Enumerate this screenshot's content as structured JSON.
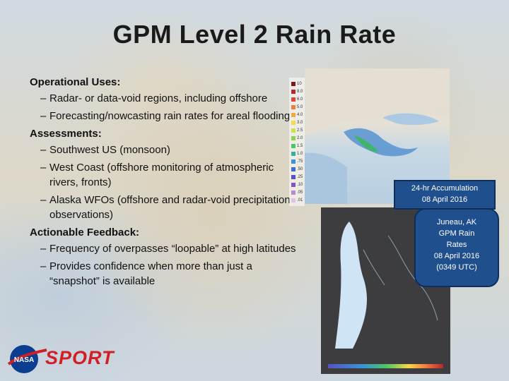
{
  "title": "GPM Level 2 Rain Rate",
  "sections": [
    {
      "heading": "Operational Uses:",
      "bullets": [
        "Radar- or data-void regions, including offshore",
        "Forecasting/nowcasting rain rates for areal flooding"
      ]
    },
    {
      "heading": "Assessments:",
      "bullets": [
        "Southwest US (monsoon)",
        "West Coast (offshore monitoring of atmospheric rivers, fronts)",
        "Alaska WFOs (offshore and radar-void precipitation observations)"
      ]
    },
    {
      "heading": "Actionable Feedback:",
      "bullets": [
        "Frequency of overpasses “loopable” at high latitudes",
        "Provides confidence when more than just a “snapshot” is available"
      ]
    }
  ],
  "legend": {
    "labels": [
      "10",
      "8.0",
      "6.0",
      "5.0",
      "4.0",
      "3.0",
      "2.5",
      "2.0",
      "1.5",
      "1.0",
      ".75",
      ".50",
      ".25",
      ".10",
      ".05",
      ".01"
    ],
    "colors": [
      "#7a1a1a",
      "#b8272c",
      "#e0443a",
      "#ef7b3e",
      "#f3a93f",
      "#f6d84a",
      "#c9e34b",
      "#8cd24f",
      "#4cc46a",
      "#33b1a3",
      "#3b93d6",
      "#3a6fd0",
      "#5552c4",
      "#8a4fc2",
      "#b68ad6",
      "#d8c6ea"
    ]
  },
  "callouts": {
    "accumulation": [
      "24-hr Accumulation",
      "08 April 2016"
    ],
    "juneau": [
      "Juneau, AK",
      "GPM Rain",
      "Rates",
      "08 April 2016",
      "(0349 UTC)"
    ]
  },
  "logo": {
    "sport": "SPORT",
    "nasa": "NASA"
  },
  "colors": {
    "callout_bg": "#1f4f8c",
    "sport_red": "#d21f26",
    "nasa_blue": "#0b3d91"
  }
}
